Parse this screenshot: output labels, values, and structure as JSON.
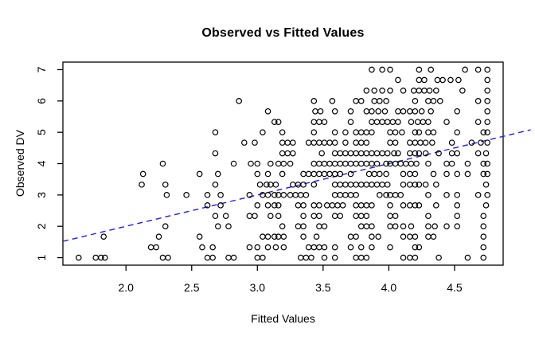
{
  "chart_data": {
    "type": "scatter",
    "title": "Observed vs Fitted Values",
    "xlabel": "Fitted Values",
    "ylabel": "Observed DV",
    "xlim": [
      1.52,
      4.87
    ],
    "ylim": [
      0.76,
      7.24
    ],
    "grid": false,
    "legend": "none",
    "xticks": {
      "values": [
        2.0,
        2.5,
        3.0,
        3.5,
        4.0,
        4.5
      ],
      "labels": [
        "2.0",
        "2.5",
        "3.0",
        "3.5",
        "4.0",
        "4.5"
      ]
    },
    "yticks": {
      "values": [
        1,
        2,
        3,
        4,
        5,
        6,
        7
      ],
      "labels": [
        "1",
        "2",
        "3",
        "4",
        "5",
        "6",
        "7"
      ]
    },
    "point_style": {
      "shape": "open-circle",
      "color": "#000000",
      "radius_px": 3.2
    },
    "reference_line": {
      "name": "identity-line y=x",
      "style": "dashed",
      "color": "#1f1fe8",
      "x1": 1.52,
      "y1": 1.52,
      "x2": 5.08,
      "y2": 5.08
    },
    "series": [
      {
        "name": "observations",
        "rows": [
          {
            "y": 7.0,
            "x": [
              3.87,
              3.95,
              4.01,
              4.23,
              4.32,
              4.58,
              4.68,
              4.75
            ]
          },
          {
            "y": 6.67,
            "x": [
              4.07,
              4.23,
              4.27,
              4.37,
              4.41,
              4.47,
              4.53,
              4.75
            ]
          },
          {
            "y": 6.33,
            "x": [
              3.83,
              3.89,
              3.95,
              4.01,
              4.11,
              4.19,
              4.23,
              4.27,
              4.31,
              4.36,
              4.56,
              4.75
            ]
          },
          {
            "y": 6.0,
            "x": [
              2.86,
              3.43,
              3.57,
              3.75,
              3.79,
              3.89,
              3.93,
              3.98,
              4.2,
              4.3,
              4.34,
              4.39,
              4.68,
              4.75
            ]
          },
          {
            "y": 5.67,
            "x": [
              3.08,
              3.44,
              3.48,
              3.59,
              3.71,
              3.83,
              3.87,
              3.92,
              3.97,
              4.07,
              4.11,
              4.16,
              4.2,
              4.25,
              4.32,
              4.52,
              4.75
            ]
          },
          {
            "y": 5.33,
            "x": [
              3.13,
              3.16,
              3.43,
              3.47,
              3.51,
              3.71,
              3.87,
              3.91,
              3.95,
              3.99,
              4.03,
              4.07,
              4.17,
              4.22,
              4.26,
              4.3,
              4.44,
              4.68,
              4.75
            ]
          },
          {
            "y": 5.0,
            "x": [
              2.68,
              3.04,
              3.19,
              3.43,
              3.59,
              3.67,
              3.75,
              3.79,
              3.83,
              3.87,
              4.01,
              4.05,
              4.1,
              4.2,
              4.23,
              4.3,
              4.34,
              4.52,
              4.72,
              4.75
            ]
          },
          {
            "y": 4.67,
            "x": [
              2.9,
              2.98,
              3.19,
              3.23,
              3.27,
              3.39,
              3.43,
              3.47,
              3.51,
              3.55,
              3.59,
              3.67,
              3.75,
              3.79,
              3.83,
              4.01,
              4.05,
              4.16,
              4.2,
              4.24,
              4.28,
              4.33,
              4.48,
              4.63,
              4.7,
              4.75
            ]
          },
          {
            "y": 4.33,
            "x": [
              2.68,
              3.19,
              3.23,
              3.27,
              3.49,
              3.59,
              3.63,
              3.67,
              3.71,
              3.75,
              3.79,
              3.83,
              3.87,
              3.91,
              3.95,
              3.99,
              4.04,
              4.07,
              4.16,
              4.2,
              4.23,
              4.28,
              4.38,
              4.48,
              4.52,
              4.68,
              4.74
            ]
          },
          {
            "y": 4.0,
            "x": [
              2.28,
              2.82,
              2.95,
              3.0,
              3.1,
              3.16,
              3.2,
              3.25,
              3.43,
              3.47,
              3.51,
              3.55,
              3.59,
              3.63,
              3.67,
              3.71,
              3.75,
              3.79,
              3.83,
              3.87,
              3.91,
              3.98,
              4.01,
              4.05,
              4.09,
              4.13,
              4.17,
              4.21,
              4.3,
              4.44,
              4.48,
              4.6,
              4.72,
              4.75
            ]
          },
          {
            "y": 3.67,
            "x": [
              2.13,
              2.56,
              2.7,
              3.0,
              3.08,
              3.19,
              3.35,
              3.39,
              3.43,
              3.47,
              3.51,
              3.55,
              3.59,
              3.63,
              3.71,
              3.85,
              3.89,
              3.93,
              3.98,
              4.11,
              4.16,
              4.2,
              4.34,
              4.44,
              4.52,
              4.6,
              4.72,
              4.75
            ]
          },
          {
            "y": 3.33,
            "x": [
              2.12,
              2.3,
              2.68,
              3.02,
              3.07,
              3.1,
              3.14,
              3.27,
              3.31,
              3.35,
              3.43,
              3.59,
              3.63,
              3.67,
              3.71,
              3.75,
              3.79,
              3.83,
              3.87,
              3.91,
              3.95,
              3.99,
              4.11,
              4.16,
              4.2,
              4.23,
              4.28,
              4.36,
              4.74
            ]
          },
          {
            "y": 3.0,
            "x": [
              2.31,
              2.46,
              2.62,
              2.72,
              2.94,
              3.04,
              3.08,
              3.13,
              3.16,
              3.2,
              3.25,
              3.29,
              3.33,
              3.37,
              3.59,
              3.63,
              3.67,
              3.71,
              3.75,
              3.93,
              3.98,
              4.01,
              4.05,
              4.09,
              4.3,
              4.44,
              4.52,
              4.68,
              4.75
            ]
          },
          {
            "y": 2.67,
            "x": [
              2.62,
              2.72,
              3.0,
              3.08,
              3.13,
              3.16,
              3.31,
              3.35,
              3.43,
              3.47,
              3.53,
              3.57,
              3.61,
              3.65,
              3.75,
              3.79,
              3.83,
              3.87,
              4.01,
              4.11,
              4.16,
              4.2,
              4.23,
              4.36,
              4.52,
              4.74
            ]
          },
          {
            "y": 2.33,
            "x": [
              2.68,
              2.76,
              2.94,
              2.98,
              3.1,
              3.16,
              3.35,
              3.43,
              3.47,
              3.59,
              3.63,
              3.75,
              3.79,
              3.83,
              4.01,
              4.05,
              4.3,
              4.52,
              4.72
            ]
          },
          {
            "y": 2.0,
            "x": [
              2.3,
              2.7,
              2.78,
              3.19,
              3.31,
              3.35,
              3.47,
              3.51,
              3.79,
              3.83,
              3.87,
              4.01,
              4.05,
              4.11,
              4.17,
              4.3,
              4.35,
              4.44,
              4.52,
              4.72
            ]
          },
          {
            "y": 1.67,
            "x": [
              1.83,
              2.25,
              2.56,
              3.04,
              3.08,
              3.13,
              3.16,
              3.2,
              3.35,
              3.45,
              3.71,
              3.75,
              3.87,
              3.92,
              4.11,
              4.16,
              4.2,
              4.3,
              4.34,
              4.72
            ]
          },
          {
            "y": 1.33,
            "x": [
              2.19,
              2.23,
              2.58,
              2.66,
              2.94,
              3.0,
              3.08,
              3.14,
              3.2,
              3.39,
              3.43,
              3.47,
              3.51,
              3.59,
              3.71,
              3.79,
              3.87,
              4.01,
              4.2,
              4.23,
              4.72
            ]
          },
          {
            "y": 1.0,
            "x": [
              1.64,
              1.77,
              1.81,
              1.84,
              2.28,
              2.32,
              2.62,
              2.66,
              2.78,
              2.82,
              3.0,
              3.04,
              3.33,
              3.37,
              3.41,
              3.51,
              3.59,
              3.75,
              3.79,
              3.83,
              4.11,
              4.16,
              4.2,
              4.38,
              4.6,
              4.72
            ]
          }
        ]
      }
    ]
  }
}
